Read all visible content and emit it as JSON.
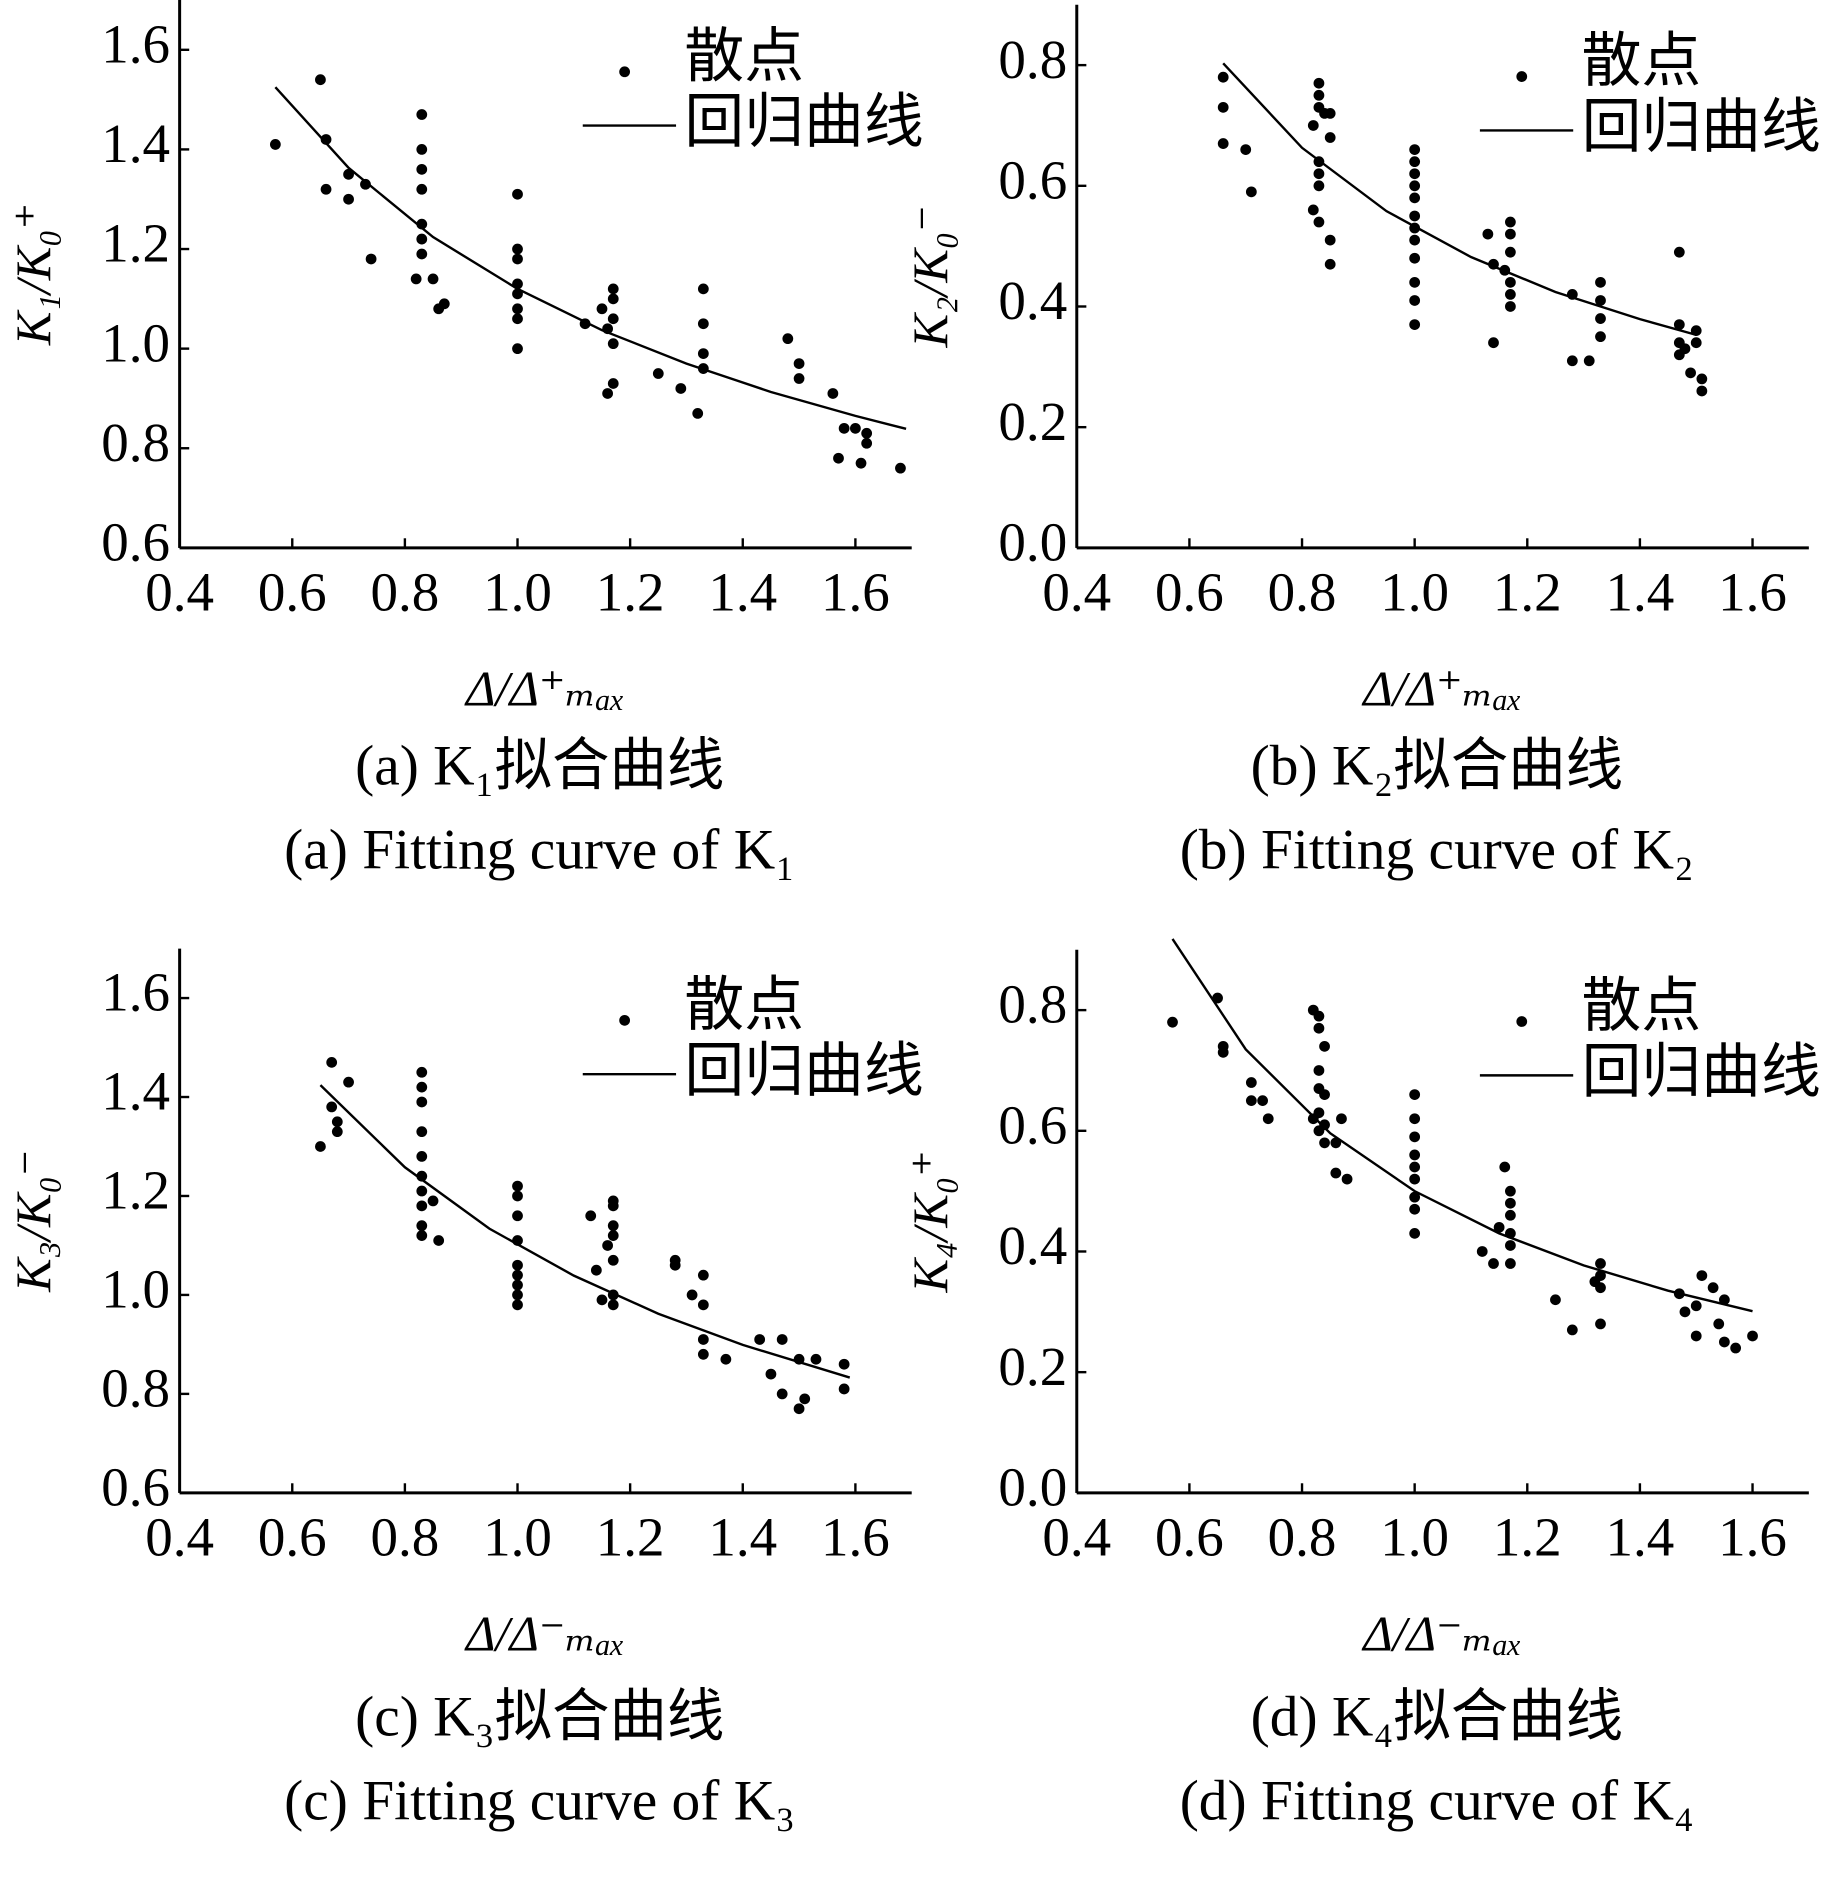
{
  "chart_data": [
    {
      "type": "scatter",
      "title": "(a) K₁拟合曲线",
      "subtitle": "(a) Fitting curve of K₁",
      "x_label": "Δ/Δ⁺ₘₐₓ",
      "y_label": "K₁/K₀⁺",
      "xlim": [
        0.4,
        1.7
      ],
      "ylim": [
        0.6,
        1.7
      ],
      "xticks": [
        0.4,
        0.6,
        0.8,
        {
          "value": 1.0,
          "label": "1.0"
        },
        1.2,
        1.4,
        1.6
      ],
      "yticks": [
        0.6,
        0.8,
        {
          "value": 1.0,
          "label": "1.0"
        },
        1.2,
        1.4,
        1.6
      ],
      "legend": "upper right",
      "series": [
        {
          "name": "散点",
          "color": "#000000",
          "x": [
            0.57,
            0.65,
            0.66,
            0.66,
            0.7,
            0.7,
            0.73,
            0.74,
            0.83,
            0.83,
            0.83,
            0.83,
            0.83,
            0.83,
            0.83,
            0.82,
            0.85,
            0.86,
            0.87,
            1.0,
            1.0,
            1.0,
            1.0,
            1.0,
            1.0,
            1.0,
            1.0,
            1.12,
            1.15,
            1.17,
            1.17,
            1.17,
            1.16,
            1.17,
            1.16,
            1.17,
            1.25,
            1.29,
            1.32,
            1.33,
            1.33,
            1.33,
            1.33,
            1.48,
            1.5,
            1.5,
            1.56,
            1.58,
            1.57,
            1.6,
            1.61,
            1.62,
            1.62,
            1.68
          ],
          "values": [
            1.41,
            1.54,
            1.42,
            1.32,
            1.35,
            1.3,
            1.33,
            1.18,
            1.47,
            1.4,
            1.36,
            1.32,
            1.25,
            1.22,
            1.19,
            1.14,
            1.14,
            1.08,
            1.09,
            1.31,
            1.2,
            1.18,
            1.13,
            1.11,
            1.08,
            1.06,
            1.0,
            1.05,
            1.08,
            1.12,
            1.1,
            1.06,
            1.04,
            1.01,
            0.91,
            0.93,
            0.95,
            0.92,
            0.87,
            1.12,
            1.05,
            0.99,
            0.96,
            1.02,
            0.97,
            0.94,
            0.91,
            0.84,
            0.78,
            0.84,
            0.77,
            0.81,
            0.83,
            0.76
          ]
        },
        {
          "name": "回归曲线",
          "color": "#000000",
          "x": [
            0.57,
            0.7,
            0.85,
            1.0,
            1.15,
            1.3,
            1.45,
            1.6,
            1.69
          ],
          "values": [
            1.525,
            1.363,
            1.224,
            1.12,
            1.037,
            0.97,
            0.913,
            0.865,
            0.839
          ]
        }
      ]
    },
    {
      "type": "scatter",
      "title": "(b) K₂拟合曲线",
      "subtitle": "(b) Fitting curve of K₂",
      "x_label": "Δ/Δ⁺ₘₐₓ",
      "y_label": "K₂/K₀⁻",
      "xlim": [
        0.4,
        1.7
      ],
      "ylim": [
        0.0,
        0.9
      ],
      "xticks": [
        0.4,
        0.6,
        0.8,
        {
          "value": 1.0,
          "label": "1.0"
        },
        1.2,
        1.4,
        1.6
      ],
      "yticks": [
        {
          "value": 0.0,
          "label": "0.0"
        },
        0.2,
        0.4,
        0.6,
        0.8
      ],
      "legend": "upper right",
      "series": [
        {
          "name": "散点",
          "color": "#000000",
          "x": [
            0.66,
            0.66,
            0.66,
            0.7,
            0.71,
            0.83,
            0.83,
            0.83,
            0.82,
            0.84,
            0.85,
            0.85,
            0.83,
            0.83,
            0.83,
            0.82,
            0.83,
            0.85,
            0.85,
            1.0,
            1.0,
            1.0,
            1.0,
            1.0,
            1.0,
            1.0,
            1.0,
            1.0,
            1.0,
            1.0,
            1.0,
            1.13,
            1.14,
            1.14,
            1.17,
            1.17,
            1.17,
            1.16,
            1.17,
            1.17,
            1.17,
            1.28,
            1.28,
            1.31,
            1.33,
            1.33,
            1.33,
            1.33,
            1.47,
            1.47,
            1.47,
            1.47,
            1.48,
            1.5,
            1.5,
            1.49,
            1.51,
            1.51
          ],
          "values": [
            0.78,
            0.73,
            0.67,
            0.66,
            0.59,
            0.77,
            0.75,
            0.73,
            0.7,
            0.72,
            0.72,
            0.68,
            0.64,
            0.62,
            0.6,
            0.56,
            0.54,
            0.51,
            0.47,
            0.66,
            0.64,
            0.62,
            0.6,
            0.58,
            0.55,
            0.53,
            0.51,
            0.48,
            0.44,
            0.41,
            0.37,
            0.52,
            0.47,
            0.34,
            0.54,
            0.52,
            0.49,
            0.46,
            0.44,
            0.42,
            0.4,
            0.42,
            0.31,
            0.31,
            0.44,
            0.41,
            0.38,
            0.35,
            0.49,
            0.37,
            0.34,
            0.32,
            0.33,
            0.36,
            0.34,
            0.29,
            0.28,
            0.26
          ]
        },
        {
          "name": "回归曲线",
          "color": "#000000",
          "x": [
            0.66,
            0.8,
            0.95,
            1.1,
            1.25,
            1.4,
            1.5
          ],
          "values": [
            0.803,
            0.663,
            0.558,
            0.482,
            0.424,
            0.379,
            0.353
          ]
        }
      ]
    },
    {
      "type": "scatter",
      "title": "(c) K₃拟合曲线",
      "subtitle": "(c) Fitting curve of K₃",
      "x_label": "Δ/Δ⁻ₘₐₓ",
      "y_label": "K₃/K₀⁻",
      "xlim": [
        0.4,
        1.7
      ],
      "ylim": [
        0.6,
        1.7
      ],
      "xticks": [
        0.4,
        0.6,
        0.8,
        {
          "value": 1.0,
          "label": "1.0"
        },
        1.2,
        1.4,
        1.6
      ],
      "yticks": [
        0.6,
        0.8,
        {
          "value": 1.0,
          "label": "1.0"
        },
        1.2,
        1.4,
        1.6
      ],
      "legend": "upper right",
      "series": [
        {
          "name": "散点",
          "color": "#000000",
          "x": [
            0.65,
            0.67,
            0.67,
            0.68,
            0.68,
            0.7,
            0.83,
            0.83,
            0.83,
            0.83,
            0.83,
            0.83,
            0.83,
            0.83,
            0.83,
            0.83,
            0.85,
            0.86,
            1.0,
            1.0,
            1.0,
            1.0,
            1.0,
            1.0,
            1.0,
            1.0,
            1.0,
            1.13,
            1.14,
            1.15,
            1.17,
            1.17,
            1.17,
            1.17,
            1.16,
            1.17,
            1.17,
            1.17,
            1.28,
            1.28,
            1.31,
            1.33,
            1.33,
            1.33,
            1.33,
            1.37,
            1.43,
            1.45,
            1.47,
            1.47,
            1.5,
            1.5,
            1.51,
            1.53,
            1.58,
            1.58
          ],
          "values": [
            1.3,
            1.47,
            1.38,
            1.35,
            1.33,
            1.43,
            1.45,
            1.42,
            1.39,
            1.33,
            1.28,
            1.24,
            1.21,
            1.18,
            1.14,
            1.12,
            1.19,
            1.11,
            1.22,
            1.2,
            1.16,
            1.11,
            1.06,
            1.04,
            1.02,
            1.0,
            0.98,
            1.16,
            1.05,
            0.99,
            1.19,
            1.18,
            1.14,
            1.12,
            1.1,
            1.07,
            1.0,
            0.98,
            1.07,
            1.06,
            1.0,
            1.04,
            0.98,
            0.91,
            0.88,
            0.87,
            0.91,
            0.84,
            0.91,
            0.8,
            0.77,
            0.87,
            0.79,
            0.87,
            0.86,
            0.81
          ]
        },
        {
          "name": "回归曲线",
          "color": "#000000",
          "x": [
            0.65,
            0.8,
            0.95,
            1.1,
            1.25,
            1.4,
            1.59
          ],
          "values": [
            1.424,
            1.258,
            1.134,
            1.039,
            0.962,
            0.899,
            0.833
          ]
        }
      ]
    },
    {
      "type": "scatter",
      "title": "(d) K₄拟合曲线",
      "subtitle": "(d) Fitting curve of K₄",
      "x_label": "Δ/Δ⁻ₘₐₓ",
      "y_label": "K₄/K₀⁺",
      "xlim": [
        0.4,
        1.7
      ],
      "ylim": [
        0.0,
        0.9
      ],
      "xticks": [
        0.4,
        0.6,
        0.8,
        {
          "value": 1.0,
          "label": "1.0"
        },
        1.2,
        1.4,
        1.6
      ],
      "yticks": [
        {
          "value": 0.0,
          "label": "0.0"
        },
        0.2,
        0.4,
        0.6,
        0.8
      ],
      "legend": "upper right",
      "series": [
        {
          "name": "散点",
          "color": "#000000",
          "x": [
            0.57,
            0.65,
            0.66,
            0.66,
            0.71,
            0.71,
            0.73,
            0.74,
            0.82,
            0.83,
            0.83,
            0.84,
            0.83,
            0.83,
            0.84,
            0.83,
            0.82,
            0.84,
            0.83,
            0.84,
            0.86,
            0.87,
            0.86,
            0.88,
            1.0,
            1.0,
            1.0,
            1.0,
            1.0,
            1.0,
            1.0,
            1.0,
            1.0,
            1.12,
            1.14,
            1.15,
            1.16,
            1.17,
            1.17,
            1.17,
            1.17,
            1.17,
            1.17,
            1.25,
            1.28,
            1.32,
            1.33,
            1.33,
            1.33,
            1.33,
            1.47,
            1.48,
            1.5,
            1.5,
            1.51,
            1.53,
            1.54,
            1.55,
            1.55,
            1.57,
            1.6
          ],
          "values": [
            0.78,
            0.82,
            0.74,
            0.73,
            0.68,
            0.65,
            0.65,
            0.62,
            0.8,
            0.79,
            0.77,
            0.74,
            0.7,
            0.67,
            0.66,
            0.63,
            0.62,
            0.61,
            0.6,
            0.58,
            0.58,
            0.62,
            0.53,
            0.52,
            0.66,
            0.62,
            0.59,
            0.56,
            0.54,
            0.52,
            0.49,
            0.47,
            0.43,
            0.4,
            0.38,
            0.44,
            0.54,
            0.5,
            0.48,
            0.46,
            0.43,
            0.41,
            0.38,
            0.32,
            0.27,
            0.35,
            0.38,
            0.36,
            0.34,
            0.28,
            0.33,
            0.3,
            0.31,
            0.26,
            0.36,
            0.34,
            0.28,
            0.32,
            0.25,
            0.24,
            0.26
          ]
        },
        {
          "name": "回归曲线",
          "color": "#000000",
          "x": [
            0.57,
            0.7,
            0.85,
            1.0,
            1.15,
            1.3,
            1.45,
            1.6
          ],
          "values": [
            0.918,
            0.735,
            0.596,
            0.5,
            0.43,
            0.377,
            0.335,
            0.301
          ]
        }
      ]
    }
  ]
}
